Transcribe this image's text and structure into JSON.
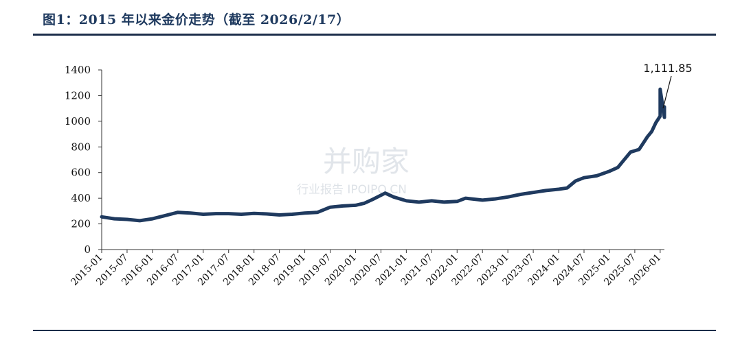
{
  "figure": {
    "title": "图1：2015 年以来金价走势（截至 2026/2/17）"
  },
  "watermark": {
    "main": "并购家",
    "sub": "行业报告 IPOIPO.CN"
  },
  "chart_data": {
    "type": "line",
    "title": "",
    "xlabel": "",
    "ylabel": "",
    "ylim": [
      0,
      1400
    ],
    "yticks": [
      0,
      200,
      400,
      600,
      800,
      1000,
      1200,
      1400
    ],
    "xlim": [
      "2015-01",
      "2026-02"
    ],
    "xticks": [
      "2015-01",
      "2015-07",
      "2016-01",
      "2016-07",
      "2017-01",
      "2017-07",
      "2018-01",
      "2018-07",
      "2019-01",
      "2019-07",
      "2020-01",
      "2020-07",
      "2021-01",
      "2021-07",
      "2022-01",
      "2022-07",
      "2023-01",
      "2023-07",
      "2024-01",
      "2024-07",
      "2025-01",
      "2025-07",
      "2026-01"
    ],
    "grid": false,
    "legend": "none",
    "line_color": "#1f3a5f",
    "annotation": {
      "text": "1,111.85",
      "x": "2026-02",
      "y": 1111.85
    },
    "series": [
      {
        "x": [
          "2015-01",
          "2015-04",
          "2015-07",
          "2015-10",
          "2016-01",
          "2016-04",
          "2016-07",
          "2016-10",
          "2017-01",
          "2017-04",
          "2017-07",
          "2017-10",
          "2018-01",
          "2018-04",
          "2018-07",
          "2018-10",
          "2019-01",
          "2019-04",
          "2019-07",
          "2019-10",
          "2020-01",
          "2020-03",
          "2020-05",
          "2020-08",
          "2020-10",
          "2021-01",
          "2021-04",
          "2021-07",
          "2021-10",
          "2022-01",
          "2022-03",
          "2022-07",
          "2022-10",
          "2023-01",
          "2023-04",
          "2023-07",
          "2023-10",
          "2024-01",
          "2024-03",
          "2024-05",
          "2024-07",
          "2024-10",
          "2025-01",
          "2025-03",
          "2025-04",
          "2025-06",
          "2025-08",
          "2025-09",
          "2025-10",
          "2025-11",
          "2025-12",
          "2026-01",
          "2026-01",
          "2026-02",
          "2026-02"
        ],
        "values": [
          255,
          240,
          235,
          225,
          240,
          265,
          290,
          285,
          275,
          280,
          280,
          275,
          282,
          278,
          270,
          275,
          285,
          290,
          330,
          340,
          345,
          360,
          390,
          440,
          410,
          380,
          370,
          380,
          370,
          375,
          400,
          385,
          395,
          410,
          430,
          445,
          460,
          470,
          480,
          535,
          560,
          575,
          610,
          640,
          680,
          760,
          780,
          830,
          880,
          920,
          990,
          1040,
          1250,
          1030,
          1111.85
        ]
      }
    ]
  }
}
